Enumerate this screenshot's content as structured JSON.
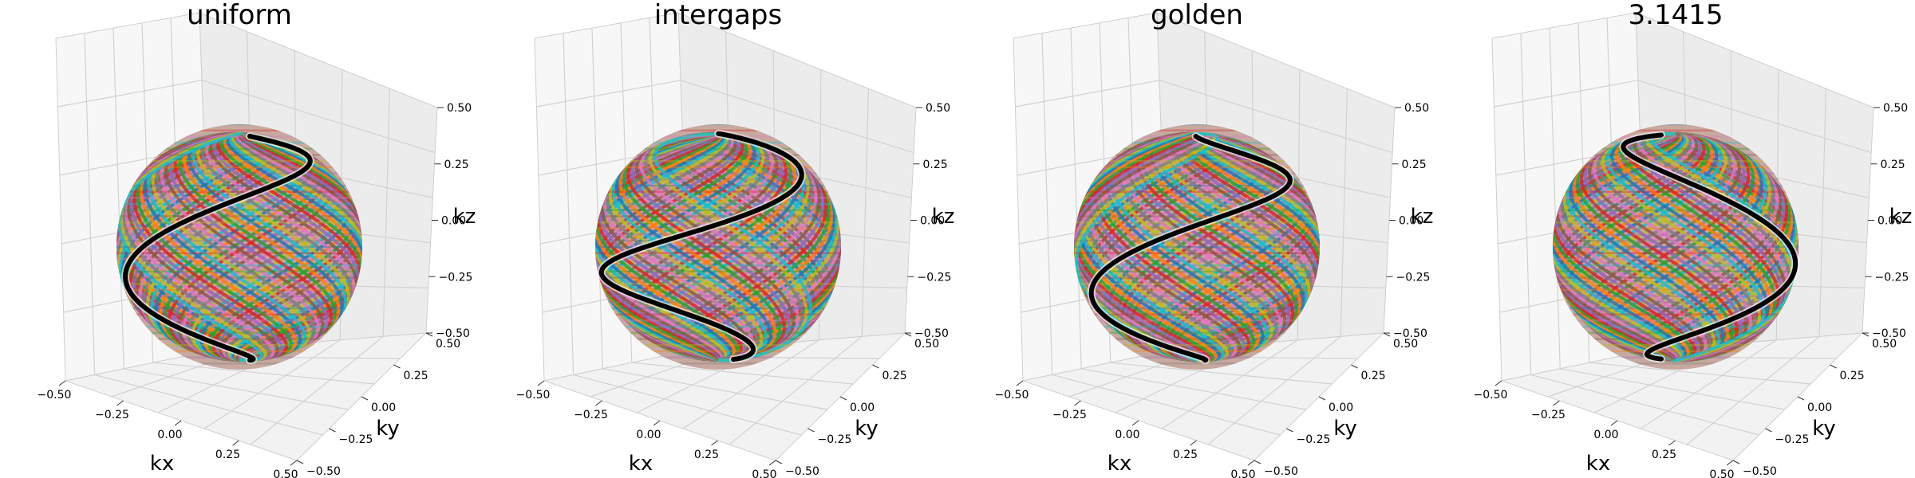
{
  "figure": {
    "title_text": ""
  },
  "chart_data": [
    {
      "type": "scatter",
      "title": "uniform",
      "xlabel": "kx",
      "ylabel": "ky",
      "zlabel": "kz",
      "xlim": [
        -0.5,
        0.5
      ],
      "ylim": [
        -0.5,
        0.5
      ],
      "zlim": [
        -0.5,
        0.5
      ],
      "x_ticks": [
        "−0.50",
        "−0.25",
        "0.00",
        "0.25",
        "0.50"
      ],
      "y_ticks": [
        "−0.50",
        "−0.25",
        "0.00",
        "0.25",
        "0.50"
      ],
      "z_ticks": [
        "−0.50",
        "−0.25",
        "0.00",
        "0.25",
        "0.50"
      ],
      "surface": "sphere of many colored spiral trajectories",
      "highlight_turns": 1.0,
      "highlight_color": "#000000"
    },
    {
      "type": "scatter",
      "title": "intergaps",
      "xlabel": "kx",
      "ylabel": "ky",
      "zlabel": "kz",
      "xlim": [
        -0.5,
        0.5
      ],
      "ylim": [
        -0.5,
        0.5
      ],
      "zlim": [
        -0.5,
        0.5
      ],
      "x_ticks": [
        "−0.50",
        "−0.25",
        "0.00",
        "0.25",
        "0.50"
      ],
      "y_ticks": [
        "−0.50",
        "−0.25",
        "0.00",
        "0.25",
        "0.50"
      ],
      "z_ticks": [
        "−0.50",
        "−0.25",
        "0.00",
        "0.25",
        "0.50"
      ],
      "surface": "sphere of many colored spiral trajectories",
      "highlight_turns": 1.25,
      "highlight_color": "#000000"
    },
    {
      "type": "scatter",
      "title": "golden",
      "xlabel": "kx",
      "ylabel": "ky",
      "zlabel": "kz",
      "xlim": [
        -0.5,
        0.5
      ],
      "ylim": [
        -0.5,
        0.5
      ],
      "zlim": [
        -0.5,
        0.5
      ],
      "x_ticks": [
        "−0.50",
        "−0.25",
        "0.00",
        "0.25",
        "0.50"
      ],
      "y_ticks": [
        "−0.50",
        "−0.25",
        "0.00",
        "0.25",
        "0.50"
      ],
      "z_ticks": [
        "−0.50",
        "−0.25",
        "0.00",
        "0.25",
        "0.50"
      ],
      "surface": "sphere of many colored spiral trajectories",
      "highlight_turns": 1.1,
      "highlight_color": "#000000"
    },
    {
      "type": "scatter",
      "title": "3.1415",
      "xlabel": "kx",
      "ylabel": "ky",
      "zlabel": "kz",
      "xlim": [
        -0.5,
        0.5
      ],
      "ylim": [
        -0.5,
        0.5
      ],
      "zlim": [
        -0.5,
        0.5
      ],
      "x_ticks": [
        "−0.50",
        "−0.25",
        "0.00",
        "0.25",
        "0.50"
      ],
      "y_ticks": [
        "−0.50",
        "−0.25",
        "0.00",
        "0.25",
        "0.50"
      ],
      "z_ticks": [
        "−0.50",
        "−0.25",
        "0.00",
        "0.25",
        "0.50"
      ],
      "surface": "sphere of many colored spiral trajectories",
      "highlight_turns": 1.0,
      "highlight_color": "#000000"
    }
  ],
  "palette": [
    "#1f77b4",
    "#ff7f0e",
    "#2ca02c",
    "#d62728",
    "#9467bd",
    "#8c564b",
    "#e377c2",
    "#7f7f7f",
    "#bcbd22",
    "#17becf"
  ]
}
